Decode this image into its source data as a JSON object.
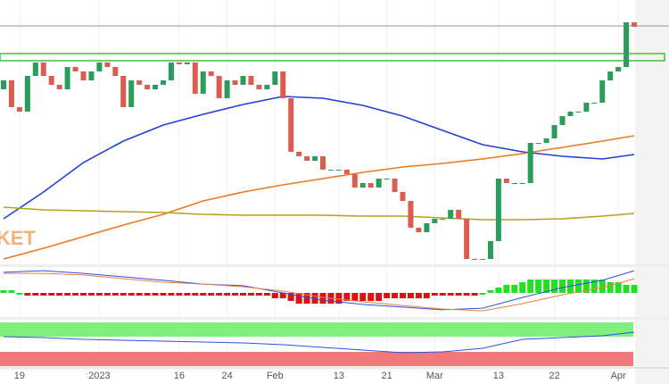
{
  "chart_data": {
    "type": "candlestick",
    "categories": [
      null,
      null,
      "19",
      null,
      null,
      null,
      null,
      null,
      null,
      null,
      null,
      null,
      "2023",
      null,
      null,
      null,
      null,
      null,
      null,
      null,
      null,
      null,
      "16",
      null,
      null,
      null,
      null,
      null,
      "24",
      null,
      null,
      null,
      null,
      null,
      "Feb",
      null,
      null,
      null,
      null,
      null,
      null,
      null,
      "13",
      null,
      null,
      null,
      null,
      null,
      "21",
      null,
      null,
      null,
      null,
      null,
      "Mar",
      null,
      null,
      null,
      null,
      null,
      null,
      null,
      "13",
      null,
      null,
      null,
      null,
      null,
      null,
      "22",
      null,
      null,
      null,
      null,
      null,
      null,
      null,
      "Apr",
      null,
      null
    ],
    "open": [
      200,
      210,
      180,
      175,
      215,
      230,
      215,
      205,
      200,
      225,
      220,
      210,
      220,
      230,
      225,
      215,
      180,
      210,
      205,
      200,
      205,
      210,
      230,
      228,
      230,
      195,
      220,
      215,
      190,
      210,
      205,
      215,
      205,
      200,
      205,
      220,
      190,
      130,
      125,
      120,
      125,
      110,
      110,
      110,
      105,
      90,
      95,
      90,
      100,
      100,
      85,
      75,
      45,
      40,
      50,
      55,
      55,
      65,
      55,
      10,
      10,
      10,
      30,
      100,
      95,
      95,
      95,
      140,
      140,
      145,
      160,
      170,
      175,
      175,
      185,
      185,
      210,
      220,
      225,
      275
    ],
    "close": [
      210,
      180,
      175,
      215,
      230,
      215,
      205,
      200,
      225,
      220,
      210,
      220,
      230,
      225,
      215,
      180,
      210,
      205,
      200,
      205,
      210,
      230,
      228,
      230,
      195,
      220,
      215,
      190,
      210,
      205,
      215,
      205,
      200,
      205,
      220,
      190,
      130,
      125,
      120,
      125,
      110,
      110,
      110,
      105,
      90,
      95,
      90,
      100,
      100,
      85,
      75,
      45,
      40,
      50,
      55,
      55,
      65,
      55,
      10,
      10,
      10,
      30,
      100,
      95,
      95,
      95,
      140,
      140,
      145,
      160,
      170,
      175,
      175,
      185,
      185,
      210,
      220,
      225,
      275,
      270
    ],
    "ylim": [
      0,
      300
    ],
    "up_color": "#2a9d5c",
    "down_color": "#dd5c50",
    "watermark": "KET",
    "line_x": [
      0,
      5,
      10,
      15,
      20,
      25,
      30,
      35,
      40,
      45,
      50,
      55,
      60,
      65,
      70,
      75,
      79
    ],
    "moving_averages": [
      {
        "color": "#2040d8",
        "values": [
          55,
          85,
          118,
          142,
          160,
          172,
          183,
          192,
          190,
          182,
          170,
          154,
          138,
          130,
          125,
          122,
          127
        ]
      },
      {
        "color": "#f07820",
        "values": [
          10,
          22,
          35,
          48,
          60,
          75,
          85,
          93,
          100,
          107,
          113,
          117,
          122,
          128,
          135,
          142,
          148
        ]
      },
      {
        "color": "#b8a020",
        "values": [
          68,
          65,
          64,
          63,
          62,
          60,
          59,
          59,
          59,
          58,
          58,
          56,
          54,
          54,
          55,
          58,
          61
        ]
      }
    ],
    "macd": {
      "ylim": [
        -9,
        10
      ],
      "histogram": [
        1,
        1,
        0,
        -1,
        -1,
        -1,
        -1,
        -1,
        -1,
        -1,
        -1,
        -1,
        -1,
        -1,
        -1,
        -1,
        -1,
        -1,
        -1,
        -1,
        -1,
        -1,
        -1,
        -1,
        -1,
        -1,
        -1,
        -1,
        -1,
        -1,
        -1,
        -1,
        -1,
        -1,
        -2,
        -2,
        -3,
        -4,
        -4,
        -4,
        -4,
        -4,
        -4,
        -3,
        -3,
        -3,
        -3,
        -3,
        -2,
        -2,
        -2,
        -2,
        -2,
        -2,
        -1,
        -1,
        -1,
        -1,
        -1,
        -1,
        0,
        1,
        2,
        3,
        3,
        4,
        5,
        5,
        5,
        5,
        5,
        5,
        5,
        5,
        5,
        5,
        4,
        4,
        3,
        3
      ],
      "up_color": "#22e022",
      "down_color": "#e01010",
      "series": [
        {
          "color": "#3050e0",
          "values": [
            7.7,
            8.3,
            7.3,
            6,
            4.7,
            3.3,
            2.7,
            0,
            -2.7,
            -4.3,
            -5.3,
            -6.3,
            -5.7,
            -1.7,
            2,
            4.7,
            8.3
          ]
        },
        {
          "color": "#f08040",
          "values": [
            7.3,
            7.3,
            6.7,
            5.3,
            4,
            3.3,
            2.3,
            0.7,
            -1.7,
            -3.3,
            -4.7,
            -6,
            -6.7,
            -4,
            -0.7,
            2,
            5.3
          ]
        }
      ]
    },
    "rsi": {
      "ylim": [
        0,
        100
      ],
      "series": [
        {
          "color": "#3050e0",
          "values": [
            66,
            64,
            60,
            58,
            56,
            54,
            52,
            48,
            42,
            36,
            30,
            32,
            40,
            60,
            64,
            68,
            76
          ]
        }
      ]
    }
  }
}
